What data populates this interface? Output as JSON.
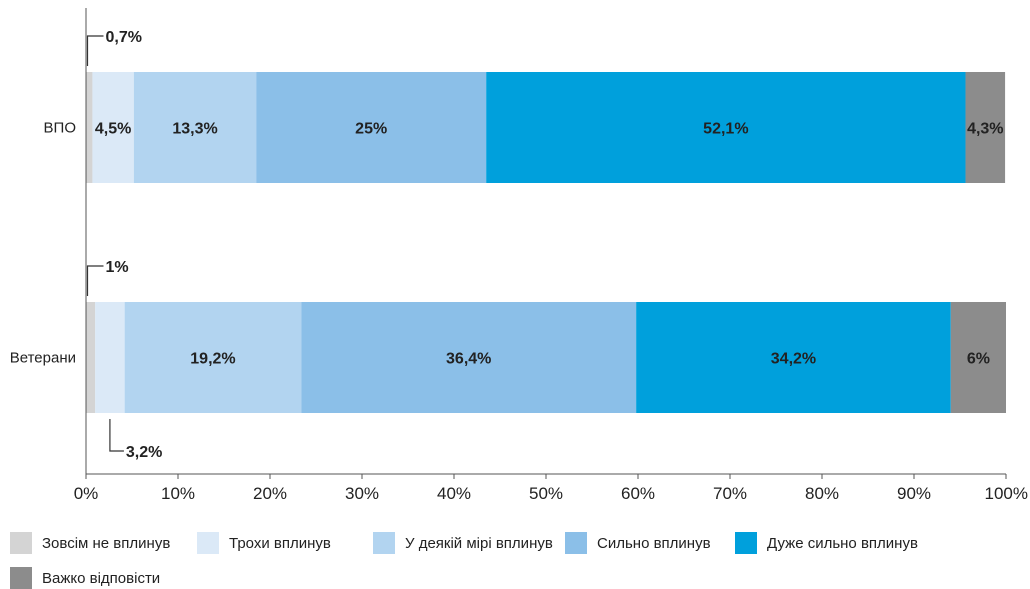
{
  "chart_data": {
    "type": "bar",
    "orientation": "horizontal",
    "stacked": true,
    "categories": [
      "ВПО",
      "Ветерани"
    ],
    "series": [
      {
        "name": "Зовсім не вплинув",
        "color": "#d4d4d4",
        "values": [
          0.7,
          1
        ],
        "labels": [
          "0,7%",
          "1%"
        ]
      },
      {
        "name": "Трохи вплинув",
        "color": "#dbe9f7",
        "values": [
          4.5,
          3.2
        ],
        "labels": [
          "4,5%",
          "3,2%"
        ]
      },
      {
        "name": "У деякій мірі вплинув",
        "color": "#b2d4f0",
        "values": [
          13.3,
          19.2
        ],
        "labels": [
          "13,3%",
          "19,2%"
        ]
      },
      {
        "name": "Сильно вплинув",
        "color": "#8bbfe8",
        "values": [
          25,
          36.4
        ],
        "labels": [
          "25%",
          "36,4%"
        ]
      },
      {
        "name": "Дуже сильно вплинув",
        "color": "#00a0dc",
        "values": [
          52.1,
          34.2
        ],
        "labels": [
          "52,1%",
          "34,2%"
        ]
      },
      {
        "name": "Важко відповісти",
        "color": "#8c8c8c",
        "values": [
          4.3,
          6
        ],
        "labels": [
          "4,3%",
          "6%"
        ]
      }
    ],
    "xlim": [
      0,
      100
    ],
    "ticks": [
      "0%",
      "10%",
      "20%",
      "30%",
      "40%",
      "50%",
      "60%",
      "70%",
      "80%",
      "90%",
      "100%"
    ],
    "grid": false,
    "legend_position": "bottom"
  }
}
